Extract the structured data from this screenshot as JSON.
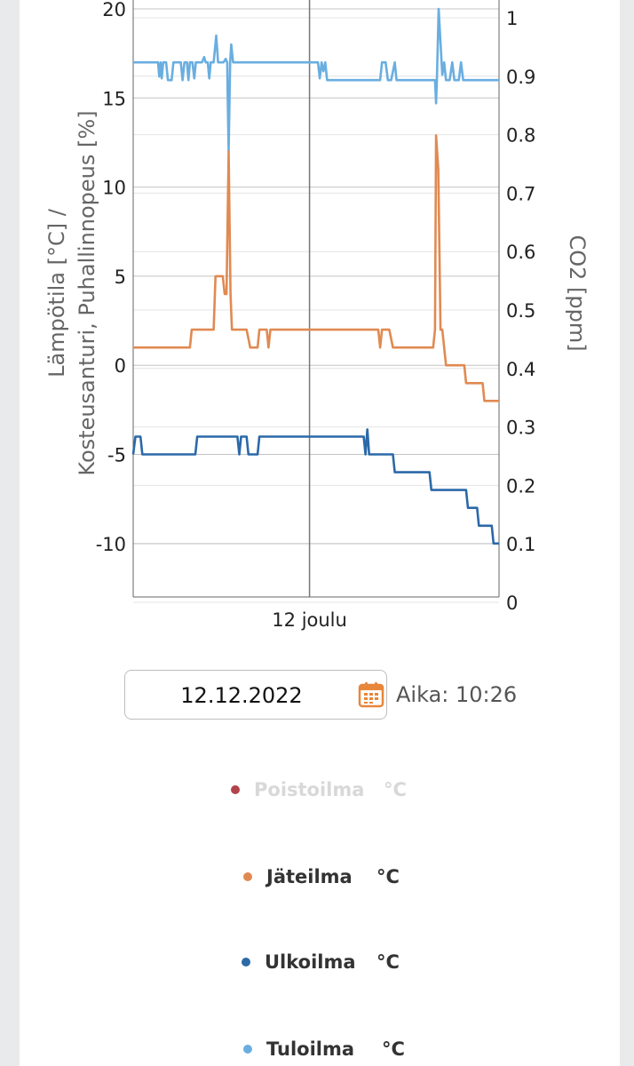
{
  "chart_data": {
    "type": "line",
    "x_tick_label": "12 joulu",
    "y_left_label_line1": "Lämpötila [°C] /",
    "y_left_label_line2": "Kosteusanturi, Puhallinnopeus [%]",
    "y_right_label": "CO2 [ppm]",
    "y_left_range": [
      -13,
      20
    ],
    "y_left_ticks": [
      -10,
      -5,
      0,
      5,
      10,
      15,
      20
    ],
    "y_right_range": [
      0,
      1
    ],
    "y_right_ticks": [
      "0",
      "0.1",
      "0.2",
      "0.3",
      "0.4",
      "0.5",
      "0.6",
      "0.7",
      "0.8",
      "0.9",
      "1"
    ],
    "x_range": [
      0,
      100
    ],
    "grid": true,
    "series": [
      {
        "name": "Tuloilma",
        "color": "#6aaee0",
        "points": [
          [
            0,
            17
          ],
          [
            6.8,
            17
          ],
          [
            7.1,
            16.2
          ],
          [
            7.5,
            17
          ],
          [
            7.8,
            16.1
          ],
          [
            8.2,
            17
          ],
          [
            9,
            17
          ],
          [
            9.5,
            16
          ],
          [
            10.5,
            16
          ],
          [
            11,
            17
          ],
          [
            13,
            17
          ],
          [
            13.5,
            16
          ],
          [
            14,
            17
          ],
          [
            14.7,
            17
          ],
          [
            15.1,
            16
          ],
          [
            15.5,
            17
          ],
          [
            16.2,
            17
          ],
          [
            16.7,
            16.1
          ],
          [
            17.1,
            17
          ],
          [
            18.8,
            17
          ],
          [
            19.4,
            17.3
          ],
          [
            19.8,
            17
          ],
          [
            20.4,
            17
          ],
          [
            20.8,
            16.1
          ],
          [
            21.2,
            17
          ],
          [
            22,
            17
          ],
          [
            22.7,
            18.5
          ],
          [
            23.2,
            17
          ],
          [
            24.7,
            17
          ],
          [
            25.3,
            17.2
          ],
          [
            25.7,
            17
          ],
          [
            25.8,
            15.5
          ],
          [
            26.1,
            12
          ],
          [
            26.5,
            17
          ],
          [
            26.8,
            18
          ],
          [
            27.3,
            17
          ],
          [
            50,
            17
          ],
          [
            50.5,
            17
          ],
          [
            51,
            16.1
          ],
          [
            51.5,
            17
          ],
          [
            52,
            16.5
          ],
          [
            52.5,
            17
          ],
          [
            53,
            16
          ],
          [
            60,
            16
          ],
          [
            65,
            16
          ],
          [
            67.5,
            16
          ],
          [
            68,
            17
          ],
          [
            69,
            17
          ],
          [
            69.6,
            16
          ],
          [
            70.5,
            16
          ],
          [
            71.5,
            17
          ],
          [
            72,
            16
          ],
          [
            82.5,
            16
          ],
          [
            82.8,
            14.7
          ],
          [
            83,
            16
          ],
          [
            83.5,
            20
          ],
          [
            84.5,
            16.3
          ],
          [
            85,
            17
          ],
          [
            85.5,
            16
          ],
          [
            86.5,
            16
          ],
          [
            87.2,
            17
          ],
          [
            87.8,
            16
          ],
          [
            89,
            16
          ],
          [
            89.6,
            17
          ],
          [
            90.2,
            16
          ],
          [
            100,
            16
          ]
        ]
      },
      {
        "name": "Jäteilma",
        "color": "#e08a52",
        "points": [
          [
            0,
            1
          ],
          [
            15,
            1
          ],
          [
            15.5,
            1
          ],
          [
            16,
            2
          ],
          [
            21,
            2
          ],
          [
            22,
            2
          ],
          [
            22.5,
            5
          ],
          [
            24.5,
            5
          ],
          [
            25,
            4
          ],
          [
            25.5,
            4
          ],
          [
            26.1,
            12
          ],
          [
            26.6,
            4
          ],
          [
            27,
            2
          ],
          [
            31,
            2
          ],
          [
            32,
            1
          ],
          [
            34,
            1
          ],
          [
            34.5,
            2
          ],
          [
            35,
            2
          ],
          [
            36.5,
            2
          ],
          [
            37,
            1
          ],
          [
            37.5,
            2
          ],
          [
            50,
            2
          ],
          [
            67,
            2
          ],
          [
            67.5,
            1
          ],
          [
            68,
            2
          ],
          [
            70,
            2
          ],
          [
            71,
            1
          ],
          [
            82,
            1
          ],
          [
            82.5,
            2
          ],
          [
            82.8,
            12.9
          ],
          [
            83.4,
            11
          ],
          [
            84,
            2
          ],
          [
            84.5,
            2
          ],
          [
            85.5,
            0
          ],
          [
            90,
            0
          ],
          [
            90.5,
            0
          ],
          [
            91,
            -1
          ],
          [
            95,
            -1
          ],
          [
            95.5,
            -1
          ],
          [
            96,
            -2
          ],
          [
            100,
            -2
          ]
        ]
      },
      {
        "name": "Ulkoilma",
        "color": "#2b69a8",
        "points": [
          [
            0,
            -5
          ],
          [
            0.6,
            -4
          ],
          [
            2,
            -4
          ],
          [
            2.5,
            -5
          ],
          [
            17,
            -5
          ],
          [
            17.5,
            -4
          ],
          [
            28,
            -4
          ],
          [
            28.5,
            -4
          ],
          [
            29,
            -5
          ],
          [
            29.5,
            -4
          ],
          [
            31,
            -4
          ],
          [
            31.5,
            -5
          ],
          [
            34,
            -5
          ],
          [
            34.5,
            -4
          ],
          [
            50,
            -4
          ],
          [
            63,
            -4
          ],
          [
            63.5,
            -5
          ],
          [
            64,
            -3.6
          ],
          [
            64.5,
            -5
          ],
          [
            71,
            -5
          ],
          [
            71.5,
            -6
          ],
          [
            81,
            -6
          ],
          [
            81.5,
            -7
          ],
          [
            91,
            -7
          ],
          [
            91.5,
            -8
          ],
          [
            94,
            -8
          ],
          [
            94.5,
            -9
          ],
          [
            98,
            -9
          ],
          [
            98.5,
            -10
          ],
          [
            100,
            -10
          ]
        ]
      }
    ],
    "crosshair_x": 48.2
  },
  "date_picker": {
    "value": "12.12.2022",
    "icon": "calendar-icon"
  },
  "time_label": "Aika: 10:26",
  "legend": [
    {
      "name": "Poistoilma",
      "unit": "°C",
      "color": "#b2434b",
      "enabled": false
    },
    {
      "name": "Jäteilma",
      "unit": "°C",
      "color": "#e08a52",
      "enabled": true
    },
    {
      "name": "Ulkoilma",
      "unit": "°C",
      "color": "#2b69a8",
      "enabled": true
    },
    {
      "name": "Tuloilma",
      "unit": "°C",
      "color": "#6aaee0",
      "enabled": true
    }
  ]
}
